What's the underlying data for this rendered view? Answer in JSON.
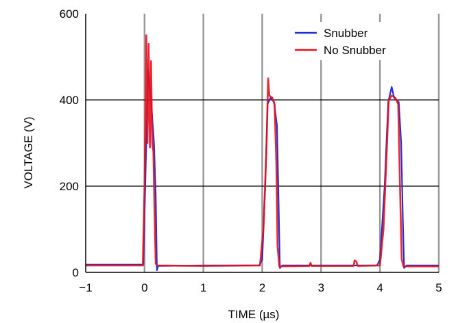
{
  "chart_data": {
    "type": "line",
    "title": "",
    "xlabel": "TIME (µs)",
    "ylabel": "VOLTAGE (V)",
    "xlim": [
      -1,
      5
    ],
    "ylim": [
      0,
      600
    ],
    "x_ticks": [
      "−1",
      "0",
      "1",
      "2",
      "3",
      "4",
      "5"
    ],
    "x_tick_values": [
      -1,
      0,
      1,
      2,
      3,
      4,
      5
    ],
    "y_ticks": [
      "0",
      "200",
      "400",
      "600"
    ],
    "y_tick_values": [
      0,
      200,
      400,
      600
    ],
    "grid": "on",
    "legend_position": "top-right",
    "series": [
      {
        "name": "Snubber",
        "color": "#1f2fd6",
        "points": [
          [
            -1,
            18
          ],
          [
            -0.02,
            18
          ],
          [
            0.02,
            250
          ],
          [
            0.06,
            470
          ],
          [
            0.09,
            430
          ],
          [
            0.12,
            380
          ],
          [
            0.16,
            300
          ],
          [
            0.19,
            180
          ],
          [
            0.21,
            5
          ],
          [
            0.23,
            15
          ],
          [
            1.0,
            16
          ],
          [
            1.95,
            16
          ],
          [
            2.0,
            30
          ],
          [
            2.05,
            200
          ],
          [
            2.09,
            390
          ],
          [
            2.14,
            405
          ],
          [
            2.2,
            395
          ],
          [
            2.25,
            340
          ],
          [
            2.28,
            150
          ],
          [
            2.3,
            10
          ],
          [
            2.34,
            16
          ],
          [
            3.0,
            16
          ],
          [
            3.5,
            16
          ],
          [
            3.95,
            16
          ],
          [
            4.0,
            30
          ],
          [
            4.08,
            200
          ],
          [
            4.14,
            395
          ],
          [
            4.2,
            430
          ],
          [
            4.24,
            405
          ],
          [
            4.32,
            395
          ],
          [
            4.36,
            300
          ],
          [
            4.39,
            120
          ],
          [
            4.41,
            10
          ],
          [
            4.45,
            16
          ],
          [
            5,
            16
          ]
        ]
      },
      {
        "name": "No Snubber",
        "color": "#e8101c",
        "points": [
          [
            -1,
            16
          ],
          [
            -0.03,
            16
          ],
          [
            0.0,
            200
          ],
          [
            0.03,
            550
          ],
          [
            0.05,
            300
          ],
          [
            0.07,
            530
          ],
          [
            0.09,
            290
          ],
          [
            0.11,
            490
          ],
          [
            0.13,
            300
          ],
          [
            0.15,
            280
          ],
          [
            0.17,
            140
          ],
          [
            0.19,
            20
          ],
          [
            0.22,
            16
          ],
          [
            1.0,
            15
          ],
          [
            1.96,
            16
          ],
          [
            2.02,
            100
          ],
          [
            2.07,
            280
          ],
          [
            2.1,
            450
          ],
          [
            2.12,
            410
          ],
          [
            2.17,
            405
          ],
          [
            2.21,
            390
          ],
          [
            2.24,
            250
          ],
          [
            2.26,
            60
          ],
          [
            2.29,
            14
          ],
          [
            2.8,
            15
          ],
          [
            2.82,
            22
          ],
          [
            2.84,
            15
          ],
          [
            3.55,
            15
          ],
          [
            3.57,
            28
          ],
          [
            3.6,
            25
          ],
          [
            3.62,
            15
          ],
          [
            4.0,
            16
          ],
          [
            4.06,
            100
          ],
          [
            4.12,
            300
          ],
          [
            4.15,
            400
          ],
          [
            4.2,
            410
          ],
          [
            4.26,
            405
          ],
          [
            4.31,
            390
          ],
          [
            4.34,
            200
          ],
          [
            4.37,
            30
          ],
          [
            4.4,
            14
          ],
          [
            5,
            14
          ]
        ]
      }
    ]
  }
}
